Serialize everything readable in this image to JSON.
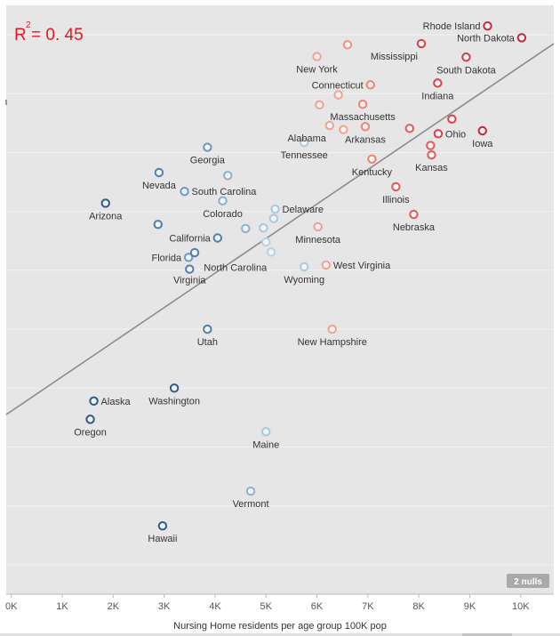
{
  "chart_data": {
    "type": "scatter",
    "title": "",
    "xlabel": "Nursing Home residents per age group 100K pop",
    "ylabel": "",
    "xlim": [
      -100,
      10650
    ],
    "x_ticks": [
      {
        "value": 0,
        "label": "0K"
      },
      {
        "value": 1000,
        "label": "1K"
      },
      {
        "value": 2000,
        "label": "2K"
      },
      {
        "value": 3000,
        "label": "3K"
      },
      {
        "value": 4000,
        "label": "4K"
      },
      {
        "value": 5000,
        "label": "5K"
      },
      {
        "value": 6000,
        "label": "6K"
      },
      {
        "value": 7000,
        "label": "7K"
      },
      {
        "value": 8000,
        "label": "8K"
      },
      {
        "value": 9000,
        "label": "9K"
      },
      {
        "value": 10000,
        "label": "10K"
      }
    ],
    "ylim": [
      0,
      100
    ],
    "y_gridlines": [
      5,
      15,
      25,
      35,
      45,
      55,
      65,
      75,
      85,
      95
    ],
    "grid": true,
    "r_squared": {
      "label": "R",
      "sup": "2",
      "value": "= 0. 45"
    },
    "trend_line": [
      {
        "x": -100,
        "y": 30.5
      },
      {
        "x": 10650,
        "y": 93.5
      }
    ],
    "nulls_badge": "2 nulls",
    "points": [
      {
        "name": "Rhode Island",
        "x": 9350,
        "y": 96.5,
        "color": "#c0283c",
        "label_side": "left"
      },
      {
        "name": "North Dakota",
        "x": 10020,
        "y": 94.5,
        "color": "#c0283c",
        "label_side": "left"
      },
      {
        "name": "Mississippi",
        "x": 8050,
        "y": 93.5,
        "color": "#d8404a",
        "label_side": "below-left"
      },
      {
        "name": "South Dakota",
        "x": 8930,
        "y": 91.2,
        "color": "#d23a48",
        "label_side": "below"
      },
      {
        "name": "Indiana",
        "x": 8370,
        "y": 86.8,
        "color": "#d8404a",
        "label_side": "below"
      },
      {
        "name": "New York",
        "x": 6000,
        "y": 91.3,
        "color": "#f4a090",
        "label_side": "below"
      },
      {
        "name": "",
        "x": 6600,
        "y": 93.3,
        "color": "#f29080",
        "label_side": "none"
      },
      {
        "name": "Connecticut",
        "x": 7050,
        "y": 86.5,
        "color": "#f08070",
        "label_side": "left"
      },
      {
        "name": "",
        "x": 6420,
        "y": 84.8,
        "color": "#f4a090",
        "label_side": "none"
      },
      {
        "name": "",
        "x": 6050,
        "y": 83.1,
        "color": "#f4a090",
        "label_side": "none"
      },
      {
        "name": "Massachusetts",
        "x": 6900,
        "y": 83.2,
        "color": "#f08070",
        "label_side": "below"
      },
      {
        "name": "",
        "x": 6520,
        "y": 78.9,
        "color": "#f4a090",
        "label_side": "none"
      },
      {
        "name": "Arkansas",
        "x": 6950,
        "y": 79.4,
        "color": "#f08070",
        "label_side": "below"
      },
      {
        "name": "",
        "x": 7820,
        "y": 79.1,
        "color": "#e05a58",
        "label_side": "none"
      },
      {
        "name": "",
        "x": 8650,
        "y": 80.7,
        "color": "#d8404a",
        "label_side": "none"
      },
      {
        "name": "Ohio",
        "x": 8380,
        "y": 78.2,
        "color": "#d8404a",
        "label_side": "right"
      },
      {
        "name": "Iowa",
        "x": 9250,
        "y": 78.7,
        "color": "#c0283c",
        "label_side": "below"
      },
      {
        "name": "Kansas",
        "x": 8250,
        "y": 74.6,
        "color": "#e05a58",
        "label_side": "below"
      },
      {
        "name": "",
        "x": 8230,
        "y": 76.2,
        "color": "#e05a58",
        "label_side": "none"
      },
      {
        "name": "Kentucky",
        "x": 7080,
        "y": 73.9,
        "color": "#f08070",
        "label_side": "below"
      },
      {
        "name": "Illinois",
        "x": 7550,
        "y": 69.2,
        "color": "#e05a58",
        "label_side": "below"
      },
      {
        "name": "Nebraska",
        "x": 7900,
        "y": 64.5,
        "color": "#e05a58",
        "label_side": "below"
      },
      {
        "name": "Alabama",
        "x": 6250,
        "y": 79.6,
        "color": "#f4a090",
        "label_side": "below-left"
      },
      {
        "name": "Tennessee",
        "x": 5750,
        "y": 76.7,
        "color": "#a8c8e0",
        "label_side": "below"
      },
      {
        "name": "Georgia",
        "x": 3850,
        "y": 75.9,
        "color": "#6b98c0",
        "label_side": "below"
      },
      {
        "name": "",
        "x": 4250,
        "y": 71.1,
        "color": "#8cb0d0",
        "label_side": "none"
      },
      {
        "name": "Nevada",
        "x": 2900,
        "y": 71.6,
        "color": "#4f7fab",
        "label_side": "below"
      },
      {
        "name": "South Carolina",
        "x": 3400,
        "y": 68.4,
        "color": "#6b98c0",
        "label_side": "right"
      },
      {
        "name": "Colorado",
        "x": 4150,
        "y": 66.8,
        "color": "#8cb0d0",
        "label_side": "below"
      },
      {
        "name": "Arizona",
        "x": 1850,
        "y": 66.4,
        "color": "#2c5a8a",
        "label_side": "below"
      },
      {
        "name": "Delaware",
        "x": 5180,
        "y": 65.4,
        "color": "#a8c8e0",
        "label_side": "right"
      },
      {
        "name": "",
        "x": 5150,
        "y": 63.8,
        "color": "#a8c8e0",
        "label_side": "none"
      },
      {
        "name": "",
        "x": 4950,
        "y": 62.2,
        "color": "#a8c8e0",
        "label_side": "none"
      },
      {
        "name": "",
        "x": 4600,
        "y": 62.1,
        "color": "#8cb0d0",
        "label_side": "none"
      },
      {
        "name": "Minnesota",
        "x": 6020,
        "y": 62.4,
        "color": "#f4a090",
        "label_side": "below"
      },
      {
        "name": "",
        "x": 2880,
        "y": 62.8,
        "color": "#4f7fab",
        "label_side": "none"
      },
      {
        "name": "California",
        "x": 4050,
        "y": 60.5,
        "color": "#4f7fab",
        "label_side": "left"
      },
      {
        "name": "",
        "x": 5000,
        "y": 59.8,
        "color": "#b8d0e4",
        "label_side": "none"
      },
      {
        "name": "",
        "x": 5100,
        "y": 58.1,
        "color": "#b8d0e4",
        "label_side": "none"
      },
      {
        "name": "Florida",
        "x": 3480,
        "y": 57.2,
        "color": "#6b98c0",
        "label_side": "left"
      },
      {
        "name": "",
        "x": 3600,
        "y": 58.0,
        "color": "#4f7fab",
        "label_side": "none"
      },
      {
        "name": "North Carolina",
        "x": 3500,
        "y": 55.2,
        "color": "#4f7fab",
        "label_side": "right-below"
      },
      {
        "name": "Virginia",
        "x": 3500,
        "y": 55.5,
        "color": "#4f7fab",
        "label_side": "below-only"
      },
      {
        "name": "West Virginia",
        "x": 6180,
        "y": 55.9,
        "color": "#f4a090",
        "label_side": "right"
      },
      {
        "name": "Wyoming",
        "x": 5750,
        "y": 55.6,
        "color": "#a8c8e0",
        "label_side": "below"
      },
      {
        "name": "Utah",
        "x": 3850,
        "y": 45.0,
        "color": "#4f7fab",
        "label_side": "below"
      },
      {
        "name": "New Hampshire",
        "x": 6300,
        "y": 45.0,
        "color": "#f4a090",
        "label_side": "below"
      },
      {
        "name": "Washington",
        "x": 3200,
        "y": 35.0,
        "color": "#2c5a8a",
        "label_side": "below"
      },
      {
        "name": "Alaska",
        "x": 1620,
        "y": 32.8,
        "color": "#2c5a8a",
        "label_side": "right"
      },
      {
        "name": "Oregon",
        "x": 1550,
        "y": 29.7,
        "color": "#2c5a8a",
        "label_side": "below"
      },
      {
        "name": "Maine",
        "x": 5000,
        "y": 27.6,
        "color": "#a8c8e0",
        "label_side": "below"
      },
      {
        "name": "Vermont",
        "x": 4700,
        "y": 17.5,
        "color": "#8cb0d0",
        "label_side": "below"
      },
      {
        "name": "Hawaii",
        "x": 2970,
        "y": 11.6,
        "color": "#2c5a8a",
        "label_side": "below"
      }
    ]
  }
}
